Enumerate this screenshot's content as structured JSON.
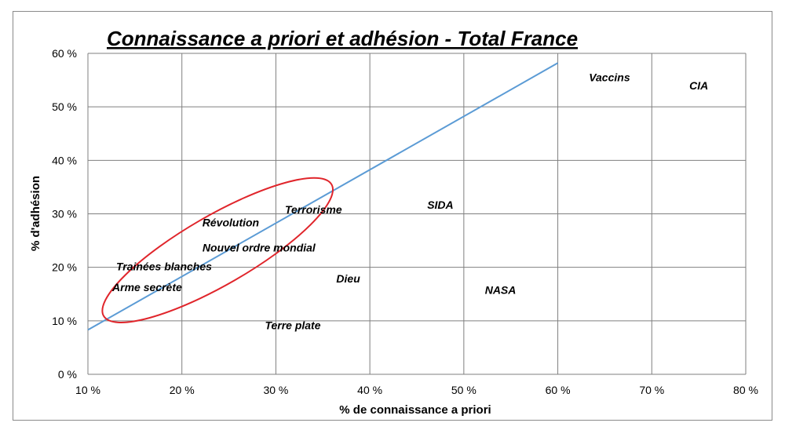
{
  "chart_data": {
    "type": "scatter",
    "title": "Connaissance a priori et adhésion - Total France",
    "xlabel": "% de connaissance a priori",
    "ylabel": "% d'adhésion",
    "xlim": [
      10,
      80
    ],
    "ylim": [
      0,
      60
    ],
    "x_ticks": [
      "10 %",
      "20 %",
      "30 %",
      "40 %",
      "50 %",
      "60 %",
      "70 %",
      "80 %"
    ],
    "y_ticks": [
      "0 %",
      "10 %",
      "20 %",
      "30 %",
      "40 %",
      "50 %",
      "60 %"
    ],
    "x_tick_values": [
      10,
      20,
      30,
      40,
      50,
      60,
      70,
      80
    ],
    "y_tick_values": [
      0,
      10,
      20,
      30,
      40,
      50,
      60
    ],
    "grid": true,
    "points": [
      {
        "label": "Vaccins",
        "x": 65.5,
        "y": 55.5
      },
      {
        "label": "CIA",
        "x": 75,
        "y": 54
      },
      {
        "label": "SIDA",
        "x": 47.5,
        "y": 31.7
      },
      {
        "label": "Terrorisme",
        "x": 34,
        "y": 30.8
      },
      {
        "label": "Révolution",
        "x": 25.2,
        "y": 28.4
      },
      {
        "label": "Nouvel ordre mondial",
        "x": 28.2,
        "y": 23.7
      },
      {
        "label": "Trainées blanches",
        "x": 18.1,
        "y": 20.2
      },
      {
        "label": "Dieu",
        "x": 37.7,
        "y": 17.9
      },
      {
        "label": "Arme secrète",
        "x": 16.3,
        "y": 16.3
      },
      {
        "label": "NASA",
        "x": 53.9,
        "y": 15.8
      },
      {
        "label": "Terre plate",
        "x": 31.8,
        "y": 9.2
      }
    ],
    "trendline": {
      "x": [
        10,
        60
      ],
      "y": [
        8.3,
        58.2
      ],
      "color": "#5b9bd5"
    },
    "highlight_ellipse": {
      "cx": 23.8,
      "cy": 23.2,
      "rx": 14.0,
      "ry": 12.2,
      "rotation": -30,
      "color": "#e0252b"
    }
  }
}
